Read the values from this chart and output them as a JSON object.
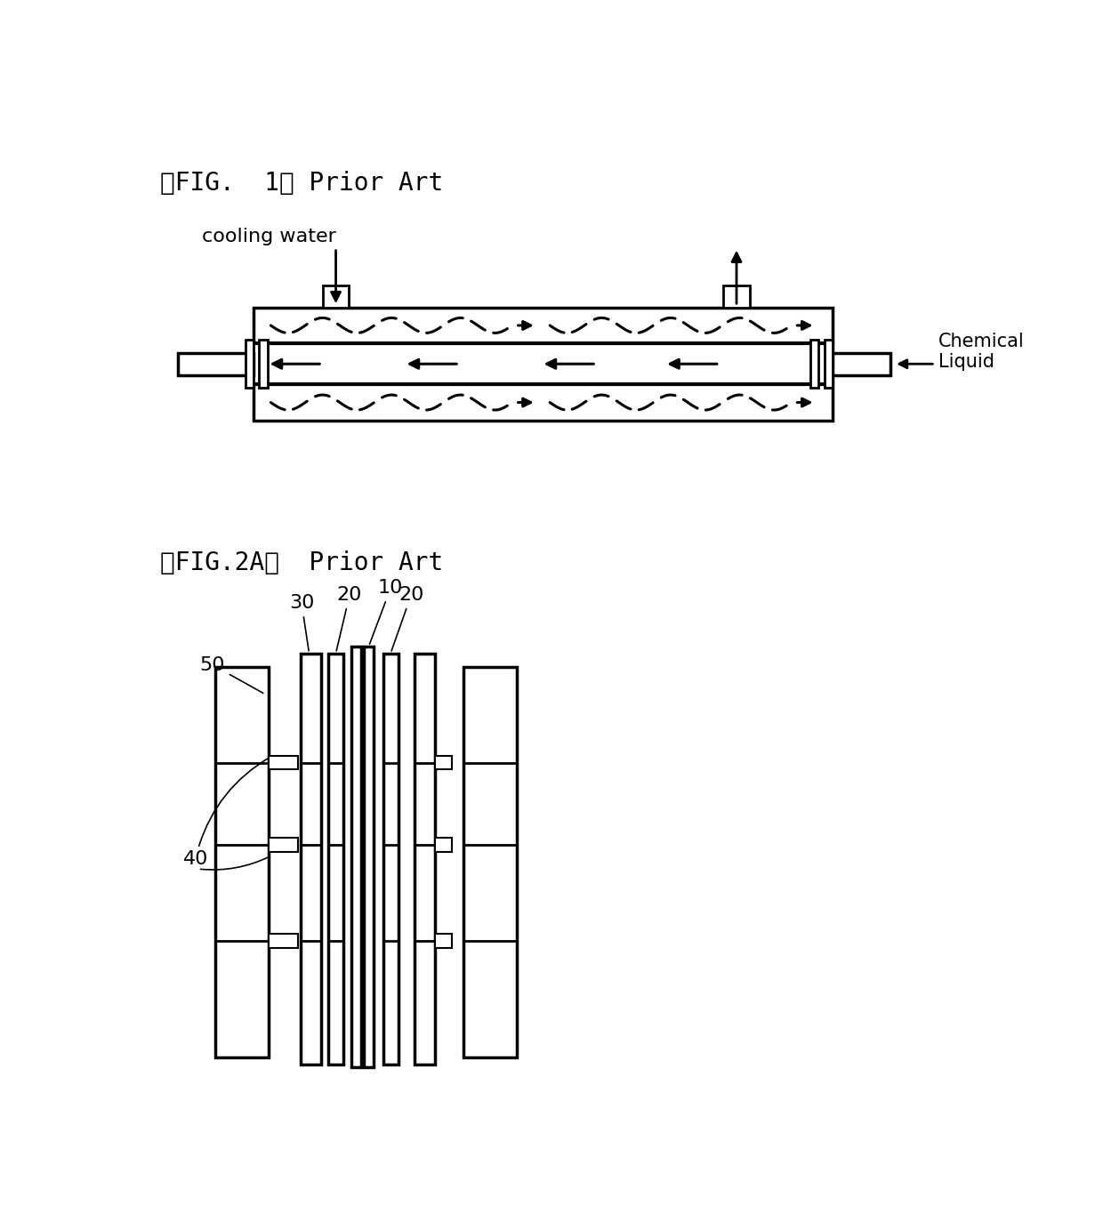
{
  "fig_title1": "【FIG.  1】 Prior Art",
  "fig_title2": "【FIG.2A】  Prior Art",
  "label_cooling_water": "cooling water",
  "label_chemical_liquid": "Chemical\nLiquid",
  "bg_color": "#ffffff",
  "line_color": "#000000",
  "label_30": "30",
  "label_10": "10",
  "label_20a": "20",
  "label_20b": "20",
  "label_50": "50",
  "label_40": "40"
}
